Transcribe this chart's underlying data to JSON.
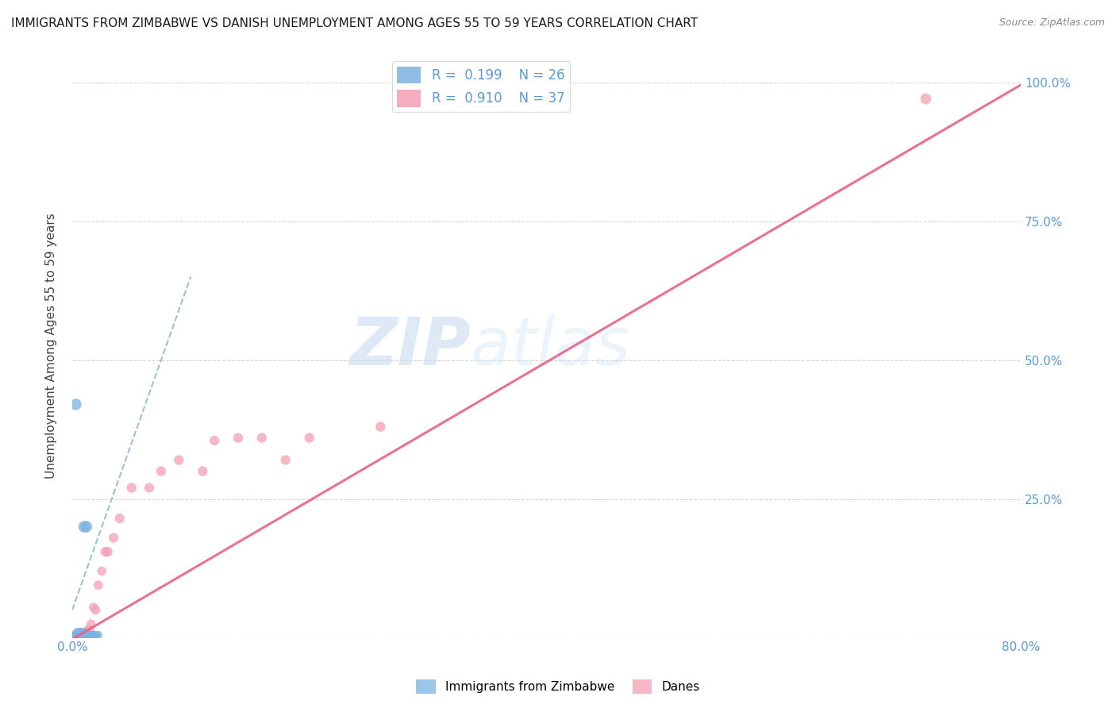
{
  "title": "IMMIGRANTS FROM ZIMBABWE VS DANISH UNEMPLOYMENT AMONG AGES 55 TO 59 YEARS CORRELATION CHART",
  "source": "Source: ZipAtlas.com",
  "ylabel": "Unemployment Among Ages 55 to 59 years",
  "watermark_zip": "ZIP",
  "watermark_atlas": "atlas",
  "xlim": [
    0.0,
    0.8
  ],
  "ylim": [
    0.0,
    1.05
  ],
  "x_ticks": [
    0.0,
    0.1,
    0.2,
    0.3,
    0.4,
    0.5,
    0.6,
    0.7,
    0.8
  ],
  "y_ticks": [
    0.0,
    0.25,
    0.5,
    0.75,
    1.0
  ],
  "y_tick_labels": [
    "",
    "25.0%",
    "50.0%",
    "75.0%",
    "100.0%"
  ],
  "grid_color": "#cccccc",
  "background_color": "#ffffff",
  "blue_color": "#7ab3e0",
  "pink_color": "#f4a0b5",
  "blue_line_color": "#8ab4d8",
  "pink_line_color": "#e8608a",
  "scatter_blue": {
    "x": [
      0.002,
      0.003,
      0.004,
      0.004,
      0.005,
      0.005,
      0.006,
      0.006,
      0.007,
      0.007,
      0.008,
      0.008,
      0.009,
      0.01,
      0.01,
      0.011,
      0.012,
      0.013,
      0.014,
      0.015,
      0.016,
      0.017,
      0.018,
      0.012,
      0.02,
      0.022
    ],
    "y": [
      0.005,
      0.005,
      0.005,
      0.01,
      0.005,
      0.005,
      0.005,
      0.01,
      0.005,
      0.01,
      0.005,
      0.01,
      0.005,
      0.005,
      0.01,
      0.005,
      0.005,
      0.005,
      0.005,
      0.005,
      0.005,
      0.005,
      0.005,
      0.2,
      0.005,
      0.005
    ],
    "sizes": [
      60,
      60,
      60,
      60,
      60,
      60,
      60,
      60,
      60,
      60,
      60,
      60,
      60,
      80,
      60,
      60,
      60,
      60,
      60,
      60,
      60,
      60,
      60,
      110,
      60,
      60
    ]
  },
  "scatter_blue_outliers": {
    "x": [
      0.003,
      0.01
    ],
    "y": [
      0.42,
      0.2
    ],
    "sizes": [
      110,
      110
    ]
  },
  "scatter_pink": {
    "x": [
      0.002,
      0.003,
      0.004,
      0.005,
      0.005,
      0.006,
      0.007,
      0.008,
      0.008,
      0.009,
      0.01,
      0.011,
      0.012,
      0.013,
      0.014,
      0.015,
      0.016,
      0.018,
      0.02,
      0.022,
      0.025,
      0.028,
      0.03,
      0.035,
      0.04,
      0.05,
      0.065,
      0.075,
      0.09,
      0.11,
      0.12,
      0.14,
      0.16,
      0.18,
      0.2,
      0.26,
      0.72
    ],
    "y": [
      0.005,
      0.005,
      0.005,
      0.005,
      0.01,
      0.005,
      0.005,
      0.01,
      0.01,
      0.005,
      0.005,
      0.005,
      0.01,
      0.015,
      0.005,
      0.015,
      0.025,
      0.055,
      0.05,
      0.095,
      0.12,
      0.155,
      0.155,
      0.18,
      0.215,
      0.27,
      0.27,
      0.3,
      0.32,
      0.3,
      0.355,
      0.36,
      0.36,
      0.32,
      0.36,
      0.38,
      0.97
    ],
    "sizes": [
      60,
      60,
      60,
      60,
      60,
      60,
      60,
      60,
      60,
      60,
      60,
      60,
      60,
      60,
      60,
      70,
      70,
      70,
      70,
      70,
      70,
      80,
      80,
      80,
      80,
      80,
      80,
      80,
      80,
      80,
      80,
      80,
      80,
      80,
      80,
      80,
      100
    ]
  },
  "trendline_blue": {
    "x": [
      0.0,
      0.1
    ],
    "y": [
      0.05,
      0.65
    ]
  },
  "trendline_pink": {
    "x": [
      -0.01,
      0.82
    ],
    "y": [
      -0.015,
      1.02
    ]
  }
}
